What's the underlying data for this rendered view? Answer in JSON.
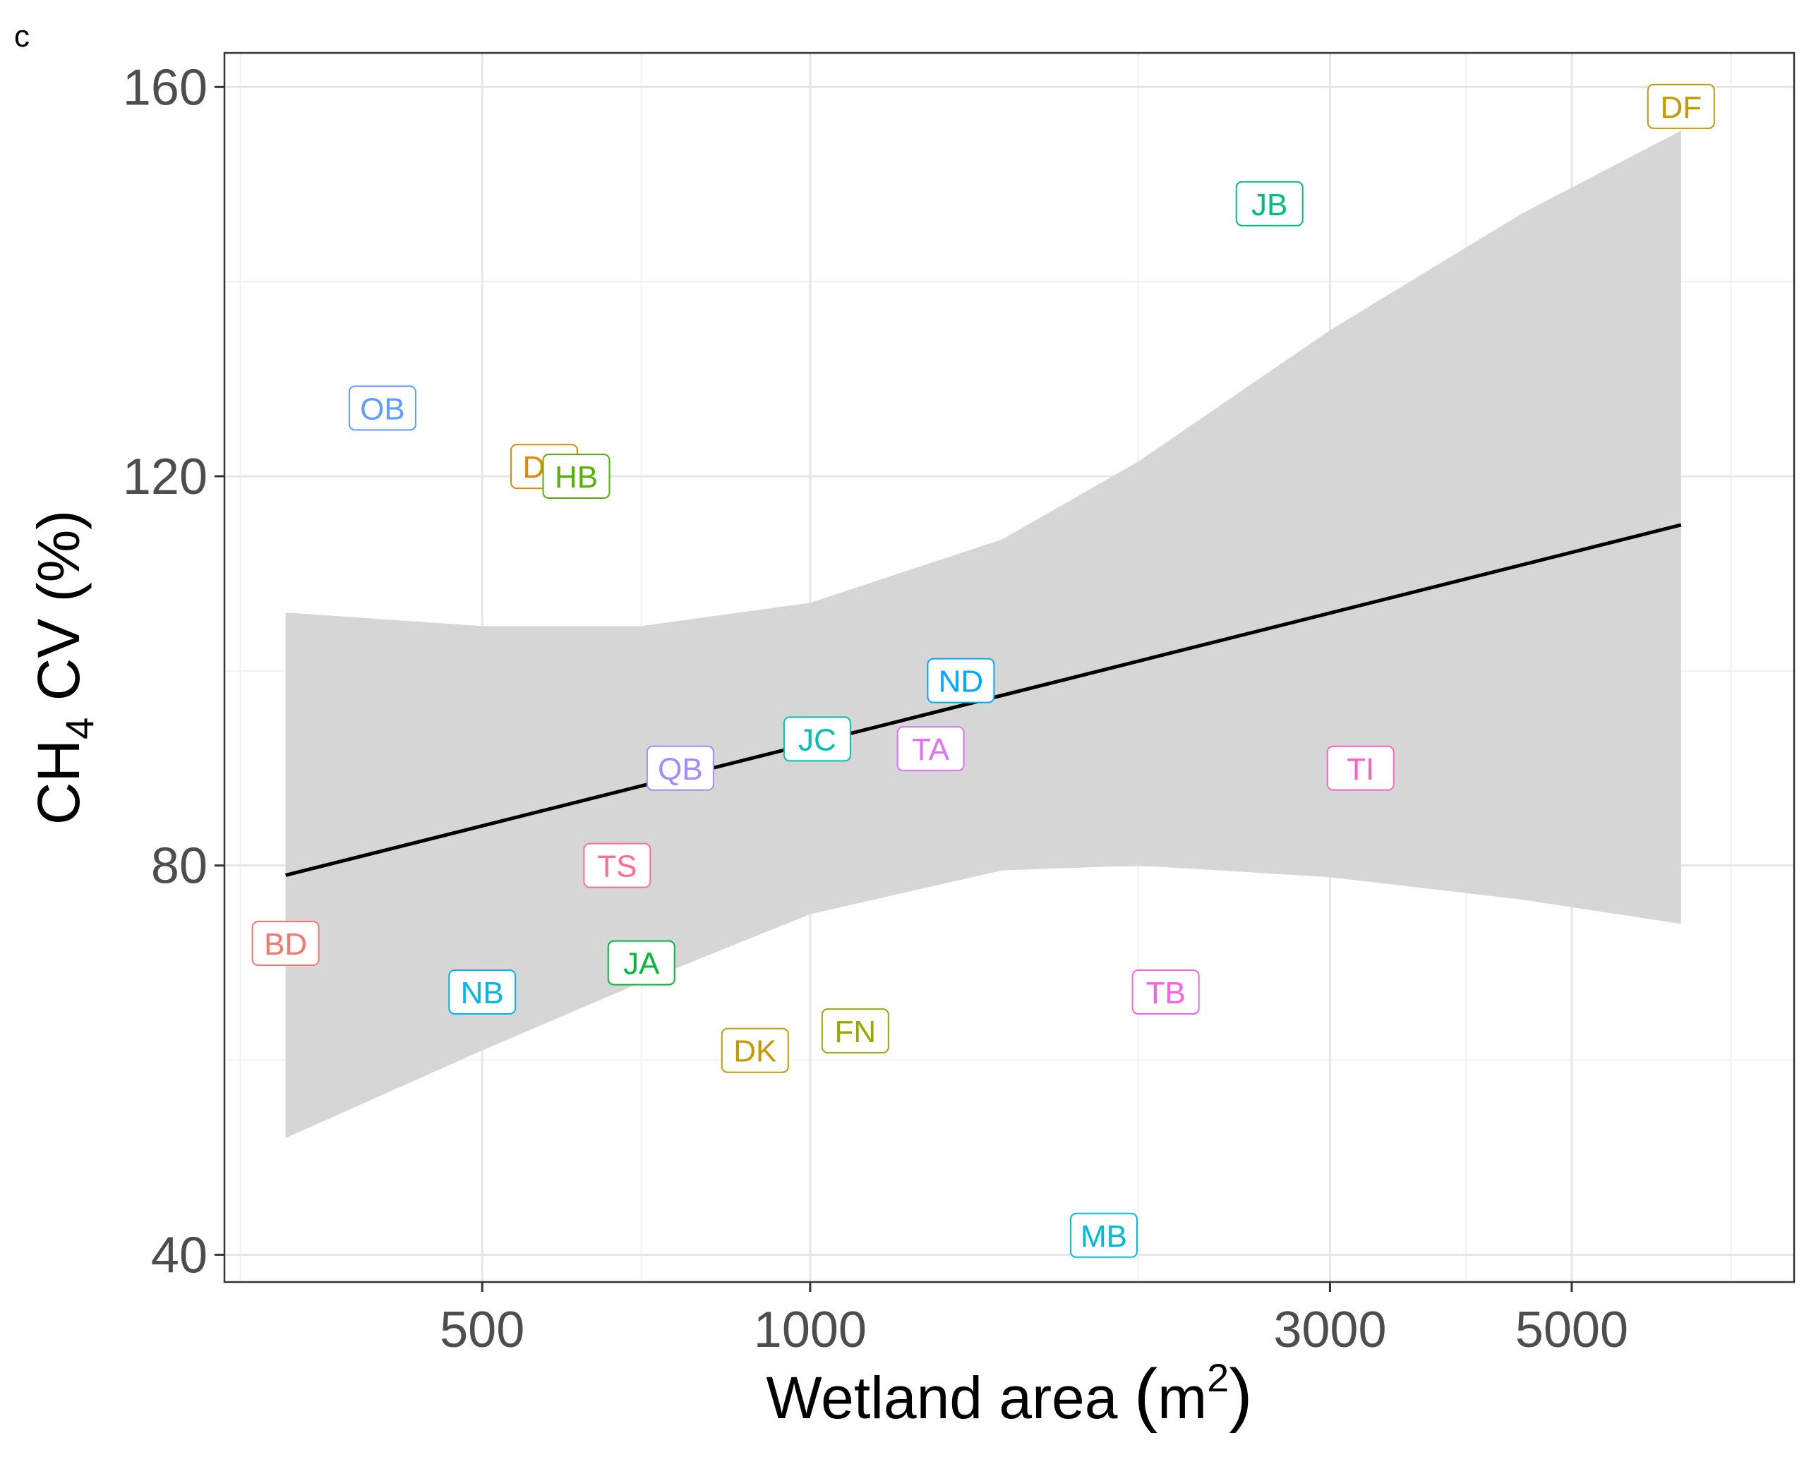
{
  "panel_letter": "c",
  "chart_data": {
    "type": "scatter",
    "xlabel": "Wetland area (m²)",
    "xlabel_main": "Wetland area ",
    "xlabel_unit": "m",
    "xlabel_sup": "2",
    "ylabel": "CH4 CV (%)",
    "ylabel_main": "CH",
    "ylabel_sub": "4",
    "ylabel_rest": " CV (%)",
    "x_scale": "log10",
    "xlim": [
      290,
      8000
    ],
    "ylim": [
      37.2,
      163.5
    ],
    "x_ticks": [
      500,
      1000,
      3000,
      5000
    ],
    "x_tick_labels": [
      "500",
      "1000",
      "3000",
      "5000"
    ],
    "x_minor_gridlines": [
      300,
      700,
      2000,
      4000,
      7000
    ],
    "y_ticks": [
      40,
      80,
      120,
      160
    ],
    "y_tick_labels": [
      "40",
      "80",
      "120",
      "160"
    ],
    "y_minor_gridlines": [
      60,
      100,
      140
    ],
    "grid": true,
    "legend": "none",
    "points": [
      {
        "label": "BD",
        "x": 330,
        "y": 72,
        "color": "#F8766D"
      },
      {
        "label": "OB",
        "x": 405,
        "y": 127,
        "color": "#619CFF"
      },
      {
        "label": "NB",
        "x": 500,
        "y": 67,
        "color": "#00B6EB"
      },
      {
        "label": "DE",
        "x": 570,
        "y": 121,
        "color": "#E58700"
      },
      {
        "label": "HB",
        "x": 610,
        "y": 120,
        "color": "#53B400"
      },
      {
        "label": "TS",
        "x": 665,
        "y": 80,
        "color": "#FF6C91"
      },
      {
        "label": "JA",
        "x": 700,
        "y": 70,
        "color": "#00BA38"
      },
      {
        "label": "QB",
        "x": 760,
        "y": 90,
        "color": "#A58AFF"
      },
      {
        "label": "DK",
        "x": 890,
        "y": 61,
        "color": "#C49A00"
      },
      {
        "label": "JC",
        "x": 1015,
        "y": 93,
        "color": "#00C0AF"
      },
      {
        "label": "FN",
        "x": 1100,
        "y": 63,
        "color": "#99A800"
      },
      {
        "label": "TA",
        "x": 1290,
        "y": 92,
        "color": "#DF70F8"
      },
      {
        "label": "ND",
        "x": 1375,
        "y": 99,
        "color": "#00A9FF"
      },
      {
        "label": "MB",
        "x": 1860,
        "y": 42,
        "color": "#00BCD8"
      },
      {
        "label": "TB",
        "x": 2120,
        "y": 67,
        "color": "#F763E0"
      },
      {
        "label": "JB",
        "x": 2640,
        "y": 148,
        "color": "#00BF7D"
      },
      {
        "label": "TI",
        "x": 3200,
        "y": 90,
        "color": "#FF61C3"
      },
      {
        "label": "DF",
        "x": 6300,
        "y": 158,
        "color": "#C49A00"
      }
    ],
    "fit_line": {
      "x": [
        330,
        6300
      ],
      "y": [
        79,
        115
      ]
    },
    "confidence_band": {
      "x": [
        330,
        500,
        700,
        1000,
        1500,
        2000,
        3000,
        4500,
        6300
      ],
      "lower": [
        52,
        61,
        68,
        75,
        79.5,
        80,
        78.8,
        76.5,
        74
      ],
      "upper": [
        106,
        104.6,
        104.6,
        107,
        113.5,
        121.5,
        135,
        147,
        155.5
      ]
    }
  }
}
